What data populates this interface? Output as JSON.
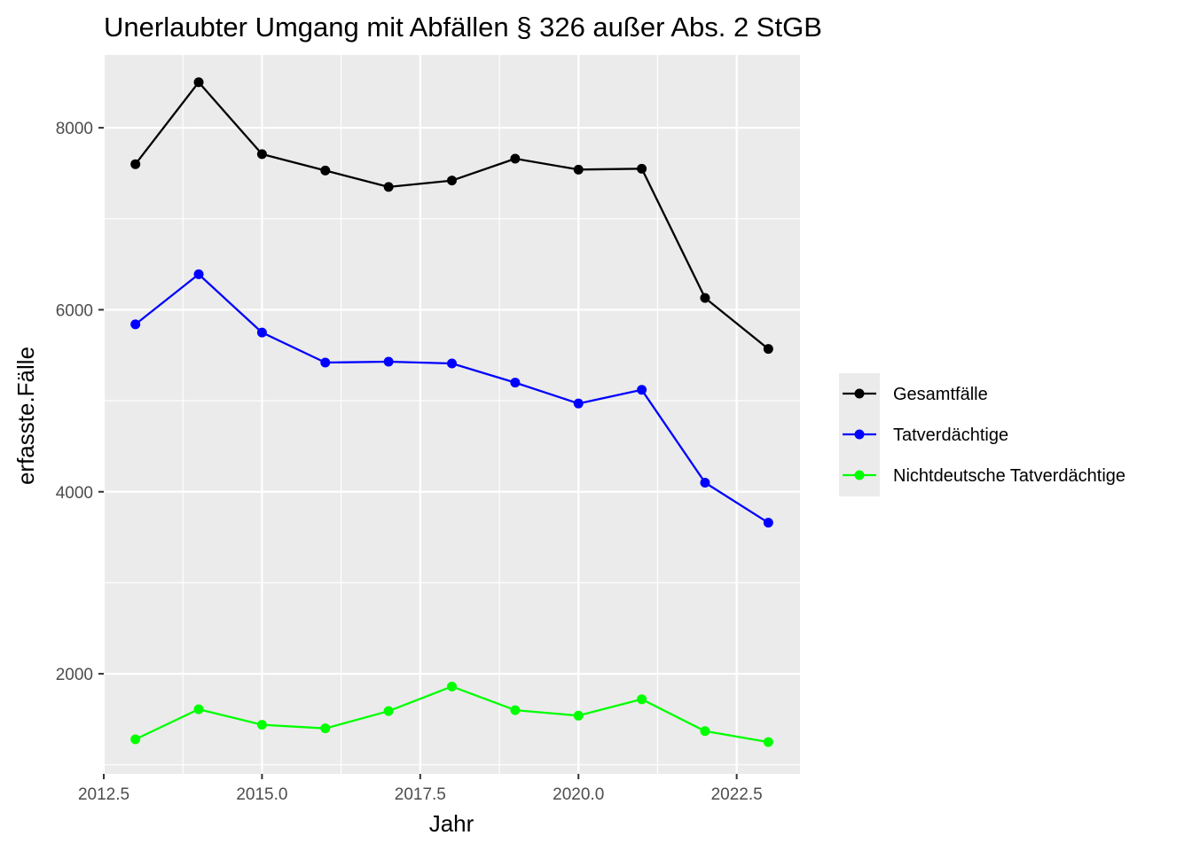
{
  "chart_data": {
    "type": "line",
    "title": "Unerlaubter Umgang mit Abfällen § 326 außer Abs. 2 StGB",
    "xlabel": "Jahr",
    "ylabel": "erfasste.Fälle",
    "xlim": [
      2012.5,
      2023.5
    ],
    "ylim": [
      900,
      8800
    ],
    "x_ticks": [
      2012.5,
      2015.0,
      2017.5,
      2020.0,
      2022.5
    ],
    "x_tick_labels": [
      "2012.5",
      "2015.0",
      "2017.5",
      "2020.0",
      "2022.5"
    ],
    "y_ticks": [
      2000,
      4000,
      6000,
      8000
    ],
    "y_tick_labels": [
      "2000",
      "4000",
      "6000",
      "8000"
    ],
    "grid": true,
    "legend_position": "right",
    "x": [
      2013,
      2014,
      2015,
      2016,
      2017,
      2018,
      2019,
      2020,
      2021,
      2022,
      2023
    ],
    "series": [
      {
        "name": "Gesamtfälle",
        "color": "#000000",
        "values": [
          7600,
          8500,
          7710,
          7530,
          7350,
          7420,
          7660,
          7540,
          7550,
          6130,
          5570
        ]
      },
      {
        "name": "Tatverdächtige",
        "color": "#0000ff",
        "values": [
          5840,
          6390,
          5750,
          5420,
          5430,
          5410,
          5200,
          4970,
          5120,
          4100,
          3660
        ]
      },
      {
        "name": "Nichtdeutsche Tatverdächtige",
        "color": "#00ff00",
        "values": [
          1280,
          1610,
          1440,
          1400,
          1590,
          1860,
          1600,
          1540,
          1720,
          1370,
          1250
        ]
      }
    ]
  }
}
